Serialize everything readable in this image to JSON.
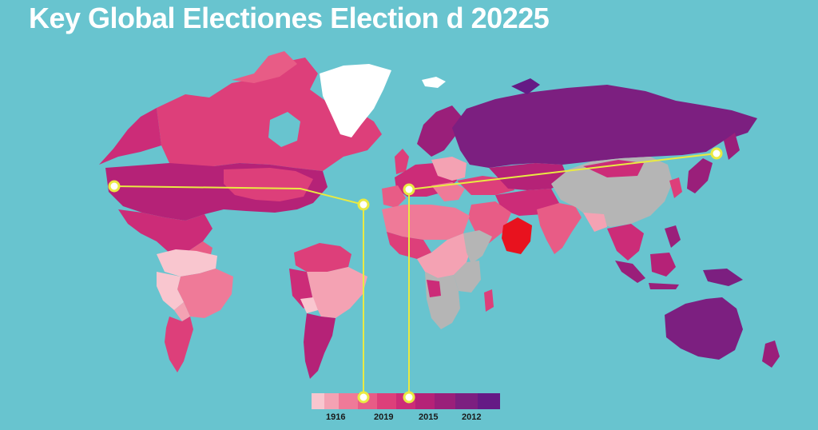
{
  "title": "Key Global Electiones Election d 20225",
  "colors": {
    "ocean": "#68c4cf",
    "scale": [
      "#f9c6cf",
      "#f4a2b3",
      "#ef7a98",
      "#e85c86",
      "#dd3f7a",
      "#cc2c78",
      "#b52277",
      "#9a1f7a",
      "#7c1f80",
      "#651a85"
    ],
    "no_data": "#b5b5b5",
    "highlight": "#e8121e",
    "greenland": "#ffffff",
    "connector": "#e9ea42"
  },
  "legend": {
    "labels": [
      "1916",
      "2019",
      "2015",
      "2012"
    ]
  },
  "markers": [
    "north-america-west-marker",
    "atlantic-marker",
    "europe-marker",
    "japan-marker",
    "legend-marker-1",
    "legend-marker-2"
  ]
}
